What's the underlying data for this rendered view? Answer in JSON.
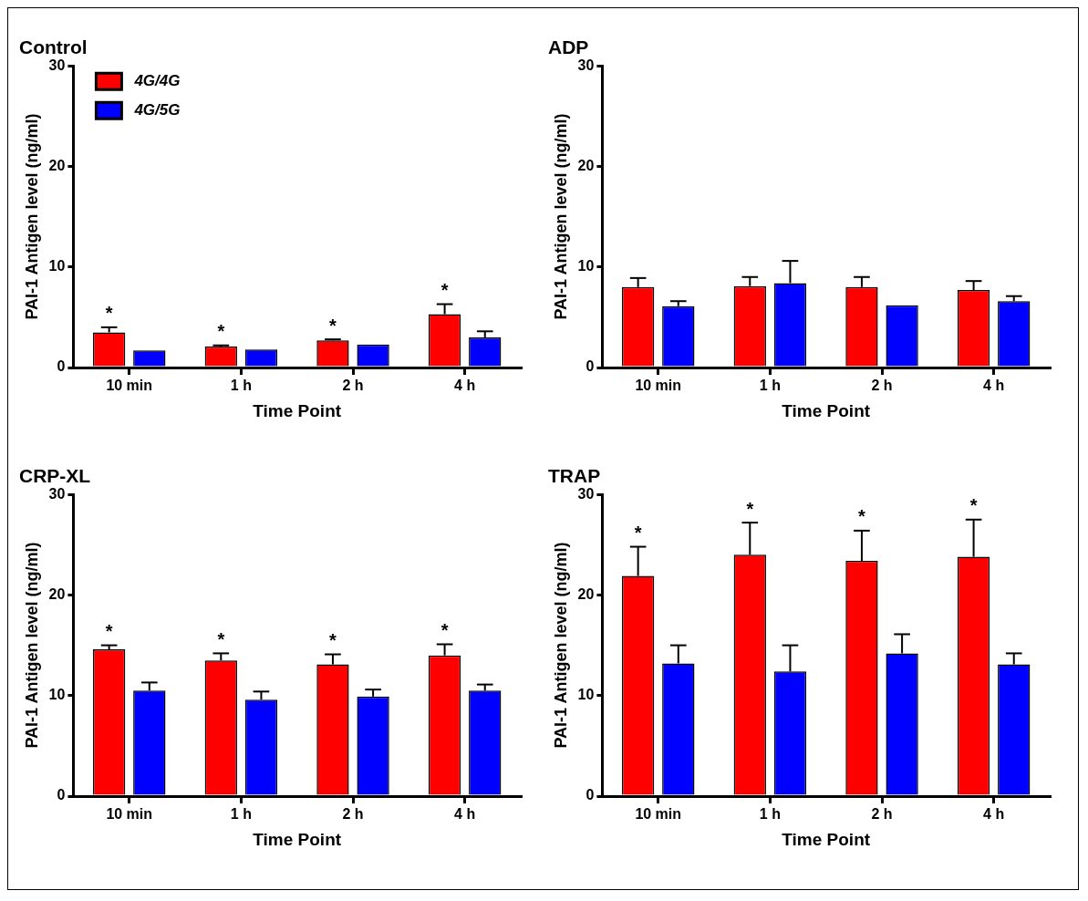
{
  "chart_data": [
    {
      "type": "bar",
      "title": "Control",
      "xlabel": "Time Point",
      "ylabel": "PAI-1 Antigen level (ng/ml)",
      "categories": [
        "10 min",
        "1 h",
        "2 h",
        "4 h"
      ],
      "ylim": [
        0,
        30
      ],
      "yticks": [
        0,
        10,
        20,
        30
      ],
      "legend": "top left",
      "series": [
        {
          "name": "4G/4G",
          "color": "#ff0000",
          "values": [
            3.5,
            2.1,
            2.7,
            5.3
          ],
          "errors": [
            [
              3.5,
              4.0
            ],
            [
              2.1,
              2.2
            ],
            [
              2.7,
              2.8
            ],
            [
              5.3,
              6.3
            ]
          ]
        },
        {
          "name": "4G/5G",
          "color": "#0000ff",
          "values": [
            1.7,
            1.8,
            2.3,
            3.0
          ],
          "errors": [
            null,
            null,
            null,
            [
              3.0,
              3.6
            ]
          ]
        }
      ],
      "annotations": [
        "*",
        "*",
        "*",
        "*"
      ]
    },
    {
      "type": "bar",
      "title": "ADP",
      "xlabel": "Time Point",
      "ylabel": "PAI-1 Antigen level (ng/ml)",
      "categories": [
        "10 min",
        "1 h",
        "2 h",
        "4 h"
      ],
      "ylim": [
        0,
        30
      ],
      "yticks": [
        0,
        10,
        20,
        30
      ],
      "series": [
        {
          "color": "#ff0000",
          "values": [
            8.0,
            8.1,
            8.0,
            7.7
          ],
          "errors": [
            [
              8.0,
              8.9
            ],
            [
              8.1,
              9.0
            ],
            [
              8.0,
              9.0
            ],
            [
              7.7,
              8.6
            ]
          ]
        },
        {
          "color": "#0000ff",
          "values": [
            6.1,
            8.4,
            6.2,
            6.6
          ],
          "errors": [
            [
              6.1,
              6.6
            ],
            [
              8.4,
              10.6
            ],
            null,
            [
              6.6,
              7.1
            ]
          ]
        }
      ]
    },
    {
      "type": "bar",
      "title": "CRP-XL",
      "xlabel": "Time Point",
      "ylabel": "PAI-1 Antigen level (ng/ml)",
      "categories": [
        "10 min",
        "1 h",
        "2 h",
        "4 h"
      ],
      "ylim": [
        0,
        30
      ],
      "yticks": [
        0,
        10,
        20,
        30
      ],
      "series": [
        {
          "color": "#ff0000",
          "values": [
            14.6,
            13.5,
            13.1,
            14.0
          ],
          "errors": [
            [
              14.6,
              15.0
            ],
            [
              13.5,
              14.2
            ],
            [
              13.1,
              14.1
            ],
            [
              14.0,
              15.1
            ]
          ]
        },
        {
          "color": "#0000ff",
          "values": [
            10.5,
            9.6,
            9.9,
            10.5
          ],
          "errors": [
            [
              10.5,
              11.3
            ],
            [
              9.6,
              10.4
            ],
            [
              9.9,
              10.6
            ],
            [
              10.5,
              11.1
            ]
          ]
        }
      ],
      "annotations": [
        "*",
        "*",
        "*",
        "*"
      ]
    },
    {
      "type": "bar",
      "title": "TRAP",
      "xlabel": "Time Point",
      "ylabel": "PAI-1 Antigen level (ng/ml)",
      "categories": [
        "10 min",
        "1 h",
        "2 h",
        "4 h"
      ],
      "ylim": [
        0,
        30
      ],
      "yticks": [
        0,
        10,
        20,
        30
      ],
      "series": [
        {
          "color": "#ff0000",
          "values": [
            21.9,
            24.0,
            23.4,
            23.8
          ],
          "errors": [
            [
              21.9,
              24.8
            ],
            [
              24.0,
              27.2
            ],
            [
              23.4,
              26.4
            ],
            [
              23.8,
              27.5
            ]
          ]
        },
        {
          "color": "#0000ff",
          "values": [
            13.2,
            12.4,
            14.2,
            13.1
          ],
          "errors": [
            [
              13.2,
              15.0
            ],
            [
              12.4,
              15.0
            ],
            [
              14.2,
              16.1
            ],
            [
              13.1,
              14.2
            ]
          ]
        }
      ],
      "annotations": [
        "*",
        "*",
        "*",
        "*"
      ]
    }
  ]
}
